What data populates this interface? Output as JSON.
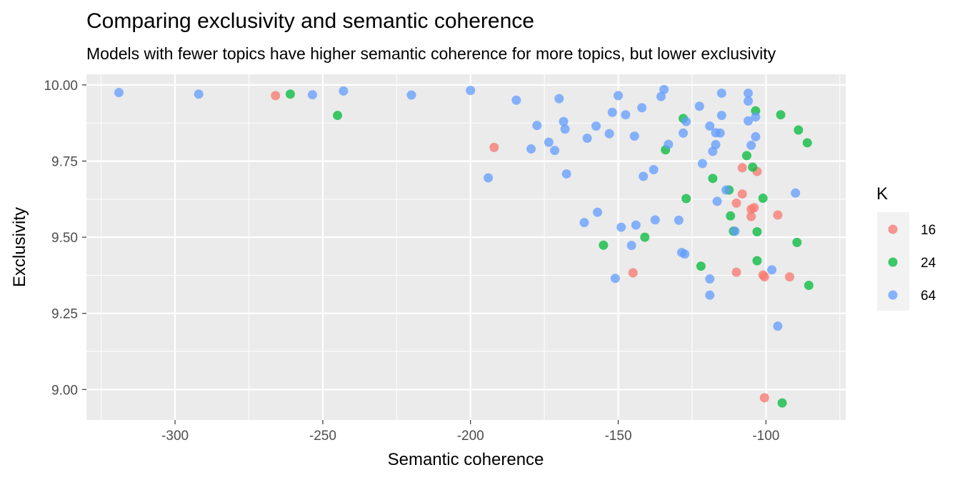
{
  "chart_data": {
    "type": "scatter",
    "title": "Comparing exclusivity and semantic coherence",
    "subtitle": "Models with fewer topics have higher semantic coherence for more topics, but lower exclusivity",
    "xlabel": "Semantic coherence",
    "ylabel": "Exclusivity",
    "xlim": [
      -330,
      -73
    ],
    "ylim": [
      8.9,
      10.035
    ],
    "x_ticks": [
      -300,
      -250,
      -200,
      -150,
      -100
    ],
    "y_ticks": [
      9.0,
      9.25,
      9.5,
      9.75,
      10.0
    ],
    "x_tick_labels": [
      "-300",
      "-250",
      "-200",
      "-150",
      "-100"
    ],
    "y_tick_labels": [
      "9.00",
      "9.25",
      "9.50",
      "9.75",
      "10.00"
    ],
    "grid": true,
    "legend": {
      "title": "K",
      "placement": "right",
      "entries": [
        {
          "label": "16",
          "color": "#F8766D"
        },
        {
          "label": "24",
          "color": "#00BA38"
        },
        {
          "label": "64",
          "color": "#619CFF"
        }
      ]
    },
    "series": [
      {
        "name": "16",
        "color": "#F8766D",
        "points": [
          [
            -266,
            9.965
          ],
          [
            -192,
            9.795
          ],
          [
            -108,
            9.728
          ],
          [
            -103,
            9.716
          ],
          [
            -108,
            9.642
          ],
          [
            -110,
            9.612
          ],
          [
            -104,
            9.597
          ],
          [
            -105,
            9.592
          ],
          [
            -105,
            9.568
          ],
          [
            -96,
            9.573
          ],
          [
            -145,
            9.383
          ],
          [
            -110,
            9.385
          ],
          [
            -101,
            9.376
          ],
          [
            -100.5,
            9.37
          ],
          [
            -92,
            9.37
          ],
          [
            -100.5,
            8.973
          ]
        ]
      },
      {
        "name": "24",
        "color": "#00BA38",
        "points": [
          [
            -261,
            9.97
          ],
          [
            -245,
            9.9
          ],
          [
            -103.5,
            9.915
          ],
          [
            -95,
            9.902
          ],
          [
            -128,
            9.89
          ],
          [
            -89,
            9.852
          ],
          [
            -86,
            9.81
          ],
          [
            -134,
            9.787
          ],
          [
            -106.5,
            9.768
          ],
          [
            -104.5,
            9.73
          ],
          [
            -118,
            9.693
          ],
          [
            -112.5,
            9.655
          ],
          [
            -127,
            9.627
          ],
          [
            -101,
            9.628
          ],
          [
            -112,
            9.57
          ],
          [
            -111,
            9.52
          ],
          [
            -103,
            9.518
          ],
          [
            -141,
            9.5
          ],
          [
            -155,
            9.474
          ],
          [
            -89.5,
            9.483
          ],
          [
            -103,
            9.423
          ],
          [
            -122,
            9.405
          ],
          [
            -85.5,
            9.342
          ],
          [
            -94.5,
            8.956
          ]
        ]
      },
      {
        "name": "64",
        "color": "#619CFF",
        "points": [
          [
            -319,
            9.975
          ],
          [
            -292,
            9.97
          ],
          [
            -253.5,
            9.968
          ],
          [
            -243,
            9.98
          ],
          [
            -220,
            9.967
          ],
          [
            -200,
            9.982
          ],
          [
            -184.5,
            9.95
          ],
          [
            -170,
            9.955
          ],
          [
            -150,
            9.965
          ],
          [
            -134.5,
            9.985
          ],
          [
            -135.5,
            9.962
          ],
          [
            -115,
            9.973
          ],
          [
            -106,
            9.973
          ],
          [
            -106,
            9.947
          ],
          [
            -122.5,
            9.93
          ],
          [
            -142,
            9.925
          ],
          [
            -152,
            9.91
          ],
          [
            -147.5,
            9.902
          ],
          [
            -115,
            9.9
          ],
          [
            -103.5,
            9.895
          ],
          [
            -106,
            9.882
          ],
          [
            -127,
            9.88
          ],
          [
            -168.5,
            9.88
          ],
          [
            -177.5,
            9.867
          ],
          [
            -157.5,
            9.865
          ],
          [
            -119,
            9.865
          ],
          [
            -168,
            9.855
          ],
          [
            -153,
            9.84
          ],
          [
            -128,
            9.842
          ],
          [
            -144.5,
            9.832
          ],
          [
            -117,
            9.843
          ],
          [
            -115.5,
            9.842
          ],
          [
            -103.5,
            9.83
          ],
          [
            -160.5,
            9.825
          ],
          [
            -173.5,
            9.812
          ],
          [
            -133,
            9.805
          ],
          [
            -117,
            9.804
          ],
          [
            -105,
            9.802
          ],
          [
            -179.5,
            9.79
          ],
          [
            -171.5,
            9.785
          ],
          [
            -118,
            9.782
          ],
          [
            -121.5,
            9.742
          ],
          [
            -138,
            9.722
          ],
          [
            -167.5,
            9.708
          ],
          [
            -141.5,
            9.7
          ],
          [
            -194,
            9.695
          ],
          [
            -113.5,
            9.655
          ],
          [
            -90,
            9.645
          ],
          [
            -116.5,
            9.618
          ],
          [
            -157,
            9.582
          ],
          [
            -161.5,
            9.548
          ],
          [
            -137.5,
            9.557
          ],
          [
            -129.5,
            9.556
          ],
          [
            -144,
            9.54
          ],
          [
            -149,
            9.533
          ],
          [
            -110.5,
            9.52
          ],
          [
            -145.5,
            9.473
          ],
          [
            -128.5,
            9.45
          ],
          [
            -127.5,
            9.445
          ],
          [
            -119,
            9.363
          ],
          [
            -151,
            9.365
          ],
          [
            -98,
            9.393
          ],
          [
            -119,
            9.31
          ],
          [
            -96,
            9.208
          ]
        ]
      }
    ]
  }
}
